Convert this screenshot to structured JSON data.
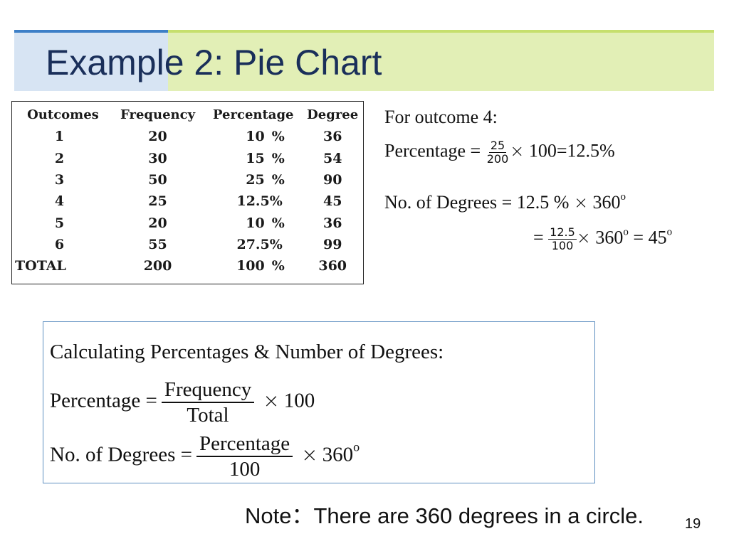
{
  "title": "Example 2: Pie Chart",
  "table": {
    "headers": [
      "Outcomes",
      "Frequency",
      "Percentage",
      "Degree"
    ],
    "rows": [
      {
        "outcome": "1",
        "frequency": "20",
        "pct_value": "10",
        "pct_sign": "%",
        "degree": "36"
      },
      {
        "outcome": "2",
        "frequency": "30",
        "pct_value": "15",
        "pct_sign": "%",
        "degree": "54"
      },
      {
        "outcome": "3",
        "frequency": "50",
        "pct_value": "25",
        "pct_sign": "%",
        "degree": "90"
      },
      {
        "outcome": "4",
        "frequency": "25",
        "pct_value": "12.5",
        "pct_sign": "%",
        "degree": "45"
      },
      {
        "outcome": "5",
        "frequency": "20",
        "pct_value": "10",
        "pct_sign": "%",
        "degree": "36"
      },
      {
        "outcome": "6",
        "frequency": "55",
        "pct_value": "27.5",
        "pct_sign": "%",
        "degree": "99"
      }
    ],
    "total": {
      "label": "TOTAL",
      "frequency": "200",
      "pct_value": "100",
      "pct_sign": "%",
      "degree": "360"
    }
  },
  "example": {
    "heading": "For outcome 4:",
    "pct_label": "Percentage =",
    "pct_num": "25",
    "pct_den": "200",
    "times": "×",
    "pct_factor": "100",
    "pct_result": "=12.5%",
    "deg_label": "No. of Degrees = 12.5 %",
    "deg_factor": "360",
    "deg_sup": "o",
    "eq": "=",
    "deg_num": "12.5",
    "deg_den": "100",
    "deg_result": "= 45",
    "deg_result_sup": "o"
  },
  "formula_box": {
    "heading": "Calculating Percentages & Number of Degrees:",
    "pct_label": "Percentage =",
    "pct_num": "Frequency",
    "pct_den": "Total",
    "times": "×",
    "pct_factor": "100",
    "deg_label": "No. of Degrees =",
    "deg_num": "Percentage",
    "deg_den": "100",
    "deg_factor": "360",
    "deg_sup": "o"
  },
  "note": "Note：There are 360 degrees in a circle.",
  "page_number": "19",
  "colors": {
    "title_text": "#1a2f5a",
    "band_left": "#d7e4f3",
    "band_left_line": "#3d7fc7",
    "band_right": "#e2efb6",
    "band_right_line": "#c6df6d",
    "formula_border": "#5e8fc0"
  }
}
